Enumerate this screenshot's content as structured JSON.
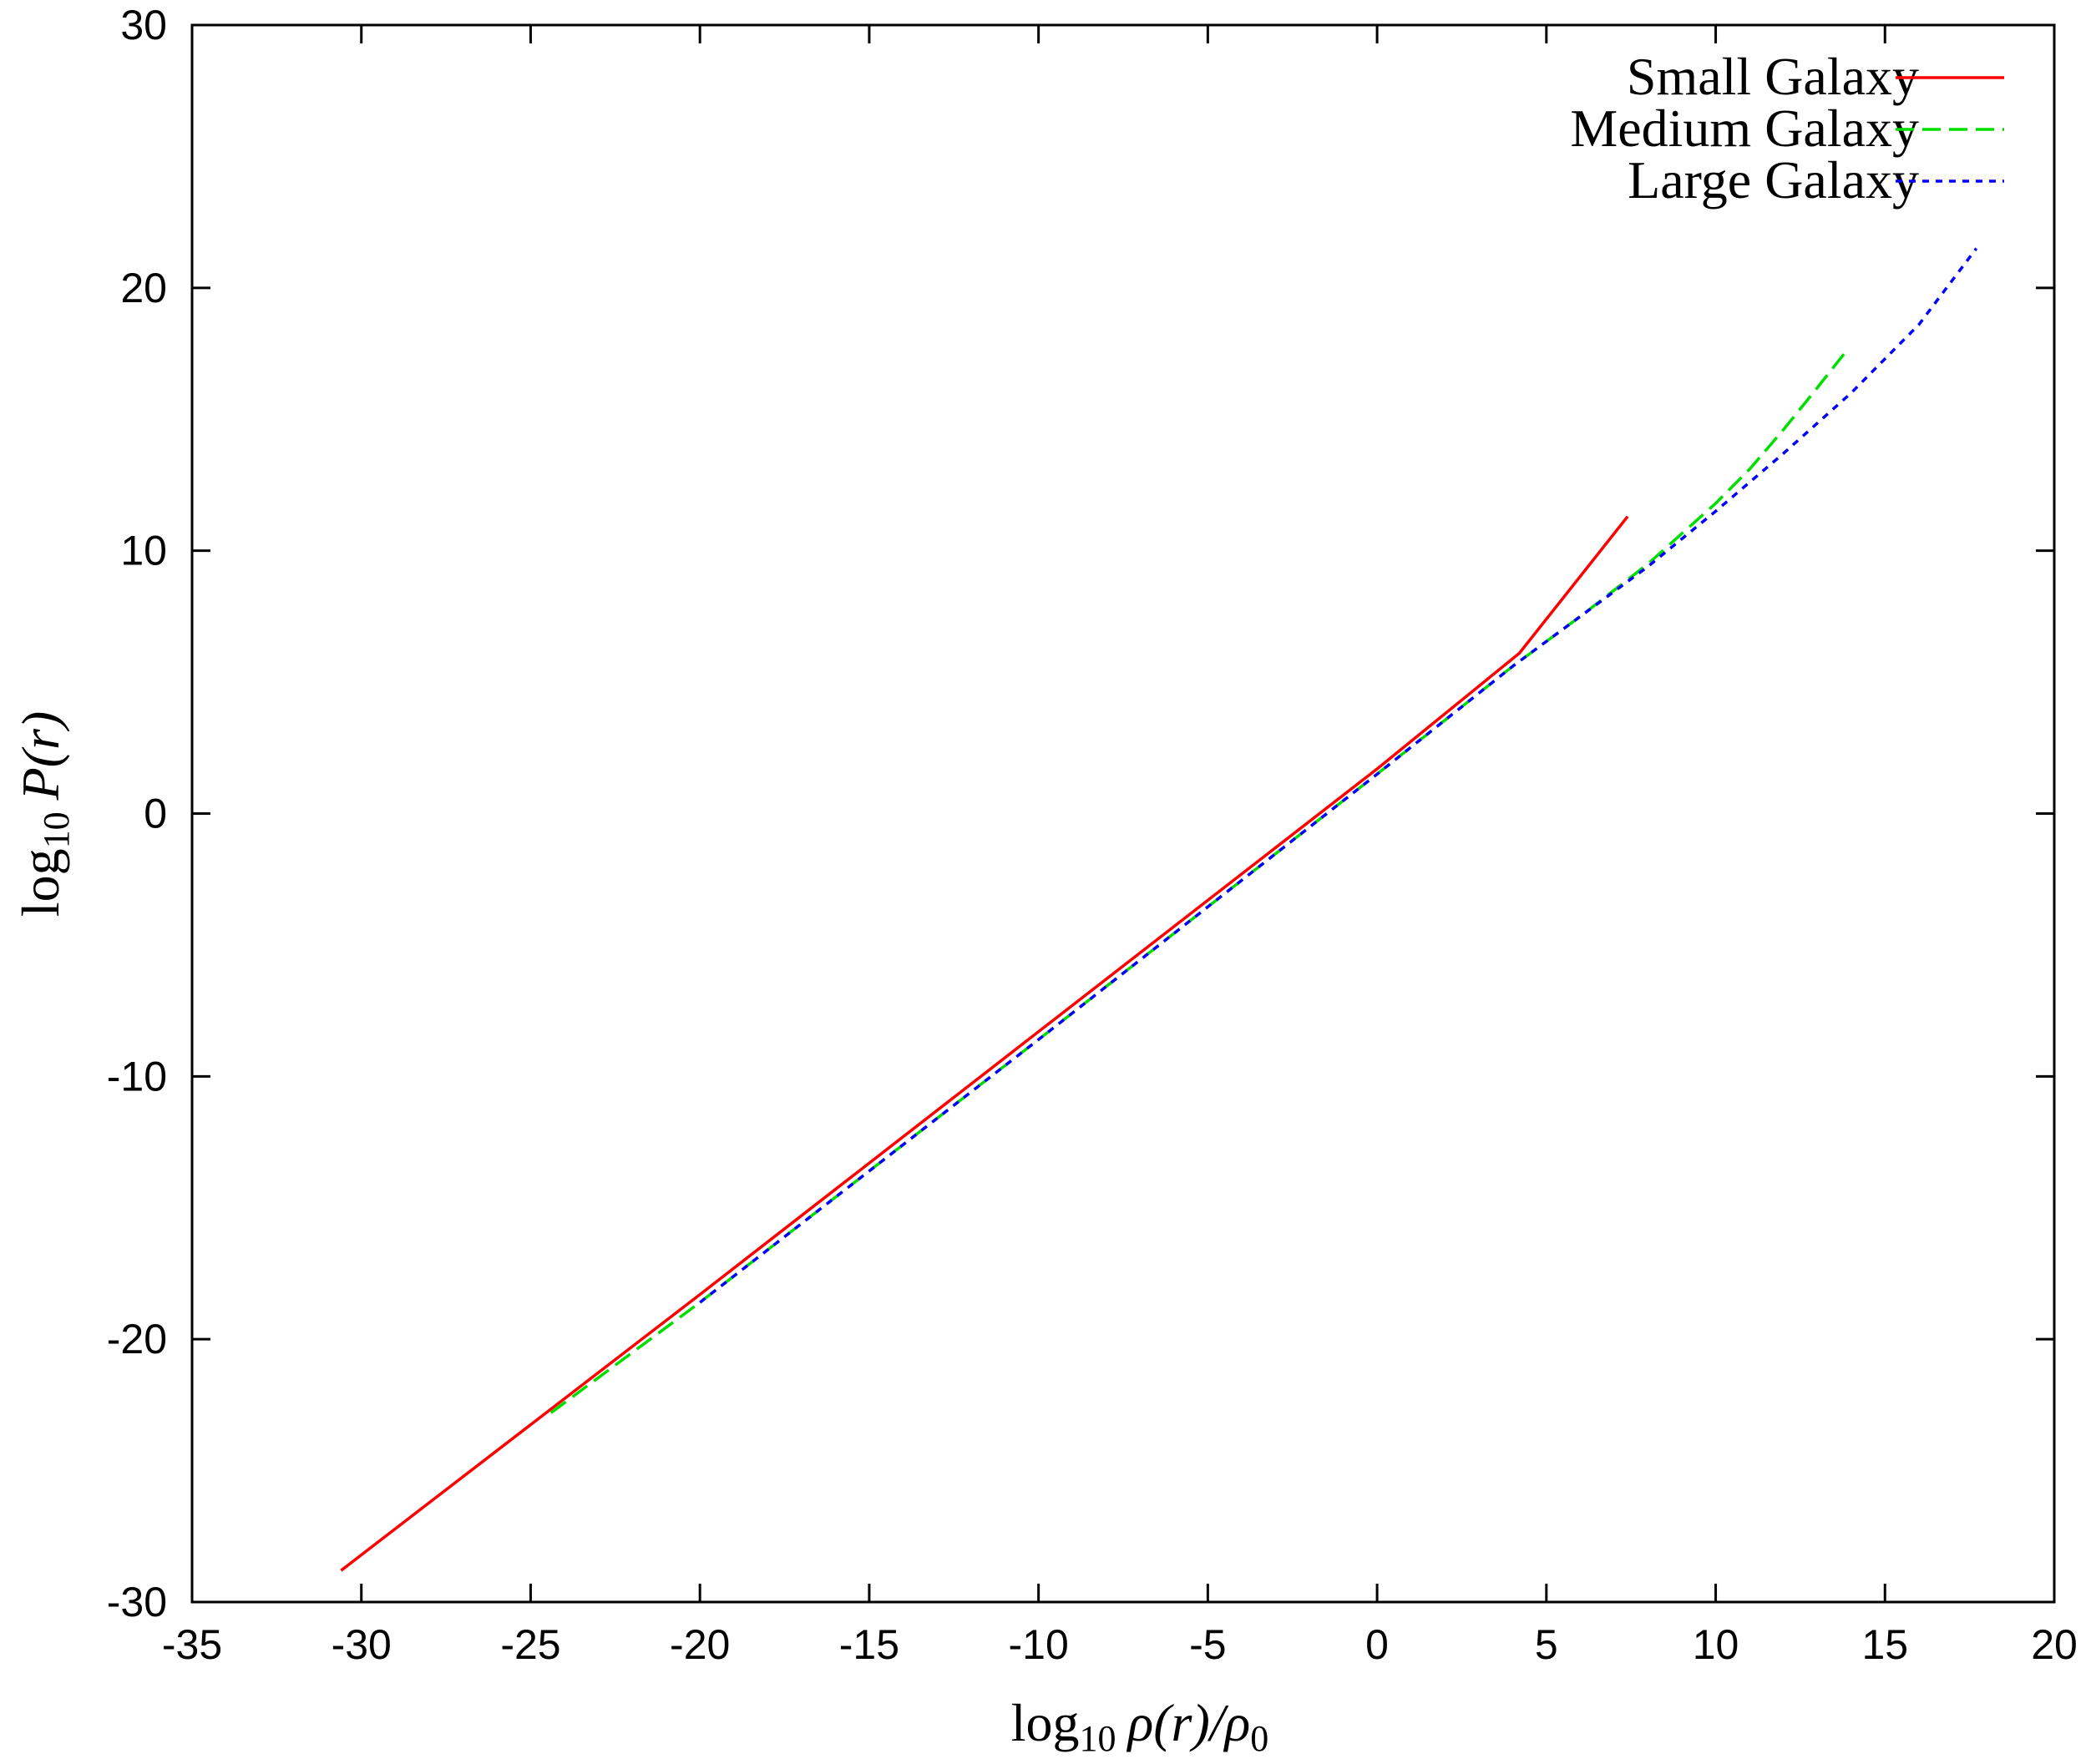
{
  "chart_data": {
    "type": "line",
    "title": "",
    "xlabel": {
      "main": "log",
      "sub": "10",
      "expr": "ρ(r)/ρ",
      "expr_sub": "0"
    },
    "ylabel": {
      "main": "log",
      "sub": "10",
      "expr": "P(r)"
    },
    "xlim": [
      -35,
      20
    ],
    "ylim": [
      -30,
      30
    ],
    "xticks": [
      -35,
      -30,
      -25,
      -20,
      -15,
      -10,
      -5,
      0,
      5,
      10,
      15,
      20
    ],
    "yticks": [
      -30,
      -20,
      -10,
      0,
      10,
      20,
      30
    ],
    "grid": false,
    "legend_position": "top-right",
    "series": [
      {
        "name": "Small Galaxy",
        "color": "#ff0000",
        "dash": "solid",
        "x": [
          -30.6,
          -20.0,
          -10.0,
          0.0,
          4.2,
          7.4
        ],
        "y": [
          -28.8,
          -18.3,
          -8.3,
          1.7,
          6.1,
          11.3
        ]
      },
      {
        "name": "Medium Galaxy",
        "color": "#00dd00",
        "dash": "dashed",
        "x": [
          -24.4,
          -20.0,
          -10.0,
          0.0,
          4.0,
          6.0,
          8.0,
          10.0,
          11.0,
          12.0,
          13.0,
          13.8
        ],
        "y": [
          -22.8,
          -18.6,
          -8.6,
          1.5,
          5.6,
          7.5,
          9.5,
          11.8,
          13.1,
          14.6,
          16.2,
          17.5
        ]
      },
      {
        "name": "Large Galaxy",
        "color": "#0000ff",
        "dash": "dotted",
        "x": [
          -20.0,
          -10.0,
          0.0,
          4.0,
          6.0,
          8.0,
          10.0,
          12.0,
          14.0,
          16.0,
          17.7
        ],
        "y": [
          -18.6,
          -8.6,
          1.5,
          5.6,
          7.5,
          9.4,
          11.5,
          13.7,
          16.0,
          18.6,
          21.5
        ]
      }
    ]
  }
}
